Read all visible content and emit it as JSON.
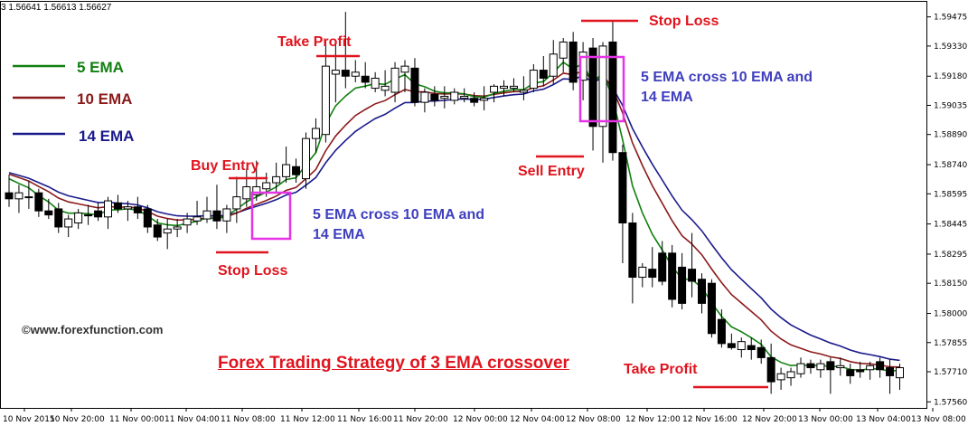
{
  "header": {
    "ohlc_text": "3 1.56641 1.56613 1.56627"
  },
  "legend": [
    {
      "label": "5 EMA",
      "color": "#108010"
    },
    {
      "label": "10 EMA",
      "color": "#8b1a1a"
    },
    {
      "label": "14 EMA",
      "color": "#1a1a8c"
    }
  ],
  "annotations": {
    "take_profit_top": "Take Profit",
    "buy_entry": "Buy Entry",
    "stop_loss_bottom": "Stop Loss",
    "stop_loss_top": "Stop Loss",
    "sell_entry": "Sell Entry",
    "take_profit_bottom": "Take Profit",
    "cross_note_1_line1": "5 EMA cross 10 EMA and",
    "cross_note_1_line2": "14 EMA",
    "cross_note_2_line1": "5 EMA cross 10 EMA and",
    "cross_note_2_line2": "14 EMA",
    "credit": "©www.forexfunction.com",
    "title": "Forex Trading Strategy of 3 EMA crossover"
  },
  "colors": {
    "bull": "#ffffff",
    "bear": "#000000",
    "annotation_red": "#e0141e",
    "note_blue": "#3f3fbf",
    "box_magenta": "#e633e6"
  },
  "chart_data": {
    "type": "candlestick",
    "title": "Forex Trading Strategy of 3 EMA crossover",
    "ylim": [
      1.5753,
      1.5955
    ],
    "y_ticks": [
      "1.59475",
      "1.59330",
      "1.59180",
      "1.59035",
      "1.58890",
      "1.58740",
      "1.58595",
      "1.58445",
      "1.58295",
      "1.58150",
      "1.58000",
      "1.57855",
      "1.57710",
      "1.57560"
    ],
    "x_ticks": [
      "10 Nov 2015",
      "10 Nov 20:00",
      "11 Nov 00:00",
      "11 Nov 04:00",
      "11 Nov 08:00",
      "11 Nov 12:00",
      "11 Nov 16:00",
      "11 Nov 20:00",
      "12 Nov 00:00",
      "12 Nov 04:00",
      "12 Nov 08:00",
      "12 Nov 12:00",
      "12 Nov 16:00",
      "12 Nov 20:00",
      "13 Nov 00:00",
      "13 Nov 04:00",
      "13 Nov 08:00"
    ],
    "candles": [
      [
        1.586,
        1.5869,
        1.5853,
        1.5857
      ],
      [
        1.5857,
        1.5864,
        1.585,
        1.586
      ],
      [
        1.5858,
        1.5866,
        1.5852,
        1.5858
      ],
      [
        1.586,
        1.5862,
        1.5848,
        1.5851
      ],
      [
        1.5851,
        1.5857,
        1.5847,
        1.5849
      ],
      [
        1.5852,
        1.5855,
        1.584,
        1.5843
      ],
      [
        1.5843,
        1.5849,
        1.5838,
        1.5847
      ],
      [
        1.5845,
        1.5852,
        1.5842,
        1.585
      ],
      [
        1.5849,
        1.5854,
        1.5844,
        1.5849
      ],
      [
        1.5851,
        1.5855,
        1.5846,
        1.5848
      ],
      [
        1.5848,
        1.5858,
        1.5842,
        1.5856
      ],
      [
        1.5855,
        1.5859,
        1.585,
        1.5852
      ],
      [
        1.5852,
        1.5856,
        1.5846,
        1.5853
      ],
      [
        1.5853,
        1.5858,
        1.5847,
        1.585
      ],
      [
        1.5852,
        1.5854,
        1.584,
        1.5843
      ],
      [
        1.5844,
        1.5847,
        1.5836,
        1.5838
      ],
      [
        1.584,
        1.5847,
        1.5832,
        1.5842
      ],
      [
        1.5842,
        1.5847,
        1.5838,
        1.5843
      ],
      [
        1.5844,
        1.585,
        1.584,
        1.5847
      ],
      [
        1.5846,
        1.5856,
        1.5844,
        1.5848
      ],
      [
        1.5847,
        1.5858,
        1.5845,
        1.5851
      ],
      [
        1.5851,
        1.5864,
        1.5842,
        1.5846
      ],
      [
        1.5846,
        1.5854,
        1.584,
        1.5852
      ],
      [
        1.5852,
        1.5868,
        1.5845,
        1.5858
      ],
      [
        1.5857,
        1.5872,
        1.5853,
        1.5863
      ],
      [
        1.5859,
        1.5876,
        1.5856,
        1.5863
      ],
      [
        1.5862,
        1.587,
        1.5858,
        1.5865
      ],
      [
        1.5865,
        1.5875,
        1.586,
        1.5868
      ],
      [
        1.5868,
        1.5883,
        1.5865,
        1.5874
      ],
      [
        1.5873,
        1.5877,
        1.5865,
        1.5869
      ],
      [
        1.5867,
        1.589,
        1.5862,
        1.5887
      ],
      [
        1.5887,
        1.5897,
        1.588,
        1.5892
      ],
      [
        1.5889,
        1.5936,
        1.5885,
        1.5923
      ],
      [
        1.5919,
        1.5935,
        1.5905,
        1.5921
      ],
      [
        1.5921,
        1.595,
        1.5912,
        1.5918
      ],
      [
        1.5918,
        1.5926,
        1.5915,
        1.592
      ],
      [
        1.5918,
        1.5925,
        1.5912,
        1.5915
      ],
      [
        1.5912,
        1.592,
        1.591,
        1.5917
      ],
      [
        1.5911,
        1.5921,
        1.5908,
        1.5913
      ],
      [
        1.591,
        1.5925,
        1.5905,
        1.5922
      ],
      [
        1.592,
        1.5926,
        1.591,
        1.5923
      ],
      [
        1.5922,
        1.5927,
        1.5903,
        1.5905
      ],
      [
        1.5905,
        1.5912,
        1.59,
        1.591
      ],
      [
        1.5909,
        1.5913,
        1.5903,
        1.5906
      ],
      [
        1.5907,
        1.5913,
        1.5902,
        1.5908
      ],
      [
        1.5906,
        1.5912,
        1.5904,
        1.591
      ],
      [
        1.5907,
        1.5912,
        1.5905,
        1.5908
      ],
      [
        1.5907,
        1.591,
        1.5903,
        1.5905
      ],
      [
        1.5906,
        1.5913,
        1.5901,
        1.5907
      ],
      [
        1.591,
        1.5914,
        1.5905,
        1.5913
      ],
      [
        1.5912,
        1.5916,
        1.5908,
        1.5913
      ],
      [
        1.5912,
        1.5917,
        1.591,
        1.5913
      ],
      [
        1.591,
        1.5918,
        1.5906,
        1.5911
      ],
      [
        1.5912,
        1.5924,
        1.591,
        1.5921
      ],
      [
        1.5921,
        1.5928,
        1.5913,
        1.5917
      ],
      [
        1.5918,
        1.5936,
        1.5914,
        1.5929
      ],
      [
        1.5927,
        1.5937,
        1.592,
        1.5935
      ],
      [
        1.5935,
        1.594,
        1.5911,
        1.5915
      ],
      [
        1.5916,
        1.5935,
        1.5906,
        1.593
      ],
      [
        1.5932,
        1.5937,
        1.5881,
        1.5893
      ],
      [
        1.5893,
        1.5935,
        1.5875,
        1.5933
      ],
      [
        1.5935,
        1.5946,
        1.5876,
        1.588
      ],
      [
        1.588,
        1.5884,
        1.5825,
        1.5845
      ],
      [
        1.5845,
        1.585,
        1.5805,
        1.5818
      ],
      [
        1.5818,
        1.5825,
        1.5813,
        1.5823
      ],
      [
        1.5822,
        1.5833,
        1.5813,
        1.5818
      ],
      [
        1.583,
        1.5836,
        1.5814,
        1.5816
      ],
      [
        1.583,
        1.5834,
        1.5803,
        1.5807
      ],
      [
        1.5823,
        1.583,
        1.5802,
        1.5805
      ],
      [
        1.5822,
        1.584,
        1.5808,
        1.5816
      ],
      [
        1.5817,
        1.582,
        1.58,
        1.5805
      ],
      [
        1.5815,
        1.5817,
        1.5788,
        1.579
      ],
      [
        1.5797,
        1.5802,
        1.5783,
        1.5785
      ],
      [
        1.5785,
        1.579,
        1.5782,
        1.5783
      ],
      [
        1.5782,
        1.5788,
        1.5778,
        1.5786
      ],
      [
        1.5784,
        1.5788,
        1.5777,
        1.5782
      ],
      [
        1.5783,
        1.5787,
        1.5775,
        1.5778
      ],
      [
        1.5778,
        1.5785,
        1.576,
        1.5766
      ],
      [
        1.5767,
        1.5773,
        1.5762,
        1.577
      ],
      [
        1.5768,
        1.5773,
        1.5764,
        1.5771
      ],
      [
        1.577,
        1.5778,
        1.5768,
        1.5775
      ],
      [
        1.5775,
        1.5777,
        1.577,
        1.5773
      ],
      [
        1.5772,
        1.5777,
        1.5768,
        1.5775
      ],
      [
        1.5776,
        1.5778,
        1.576,
        1.5772
      ],
      [
        1.5773,
        1.5778,
        1.5769,
        1.5774
      ],
      [
        1.5772,
        1.5775,
        1.5765,
        1.5769
      ],
      [
        1.5772,
        1.5776,
        1.5768,
        1.5771
      ],
      [
        1.5772,
        1.5776,
        1.5767,
        1.5774
      ],
      [
        1.5776,
        1.5778,
        1.5768,
        1.5772
      ],
      [
        1.5773,
        1.5777,
        1.576,
        1.5769
      ],
      [
        1.5768,
        1.5775,
        1.5762,
        1.5773
      ]
    ],
    "series": [
      {
        "name": "5 EMA",
        "period": 5
      },
      {
        "name": "10 EMA",
        "period": 10
      },
      {
        "name": "14 EMA",
        "period": 14
      }
    ],
    "ema_seed": 1.5872
  }
}
